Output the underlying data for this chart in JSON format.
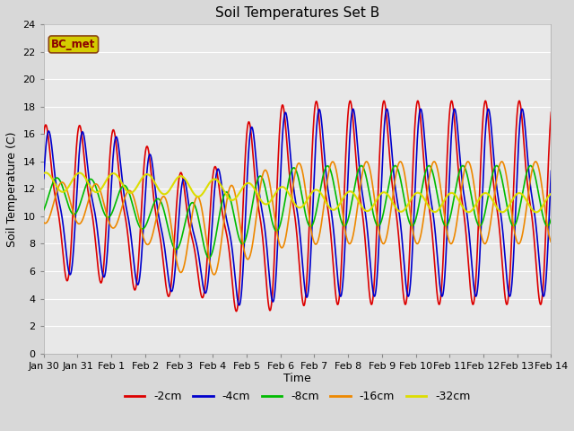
{
  "title": "Soil Temperatures Set B",
  "xlabel": "Time",
  "ylabel": "Soil Temperature (C)",
  "ylim": [
    0,
    24
  ],
  "yticks": [
    0,
    2,
    4,
    6,
    8,
    10,
    12,
    14,
    16,
    18,
    20,
    22,
    24
  ],
  "legend_label": "BC_met",
  "legend_box_facecolor": "#d4cc00",
  "legend_box_edgecolor": "#8B4513",
  "series": [
    {
      "label": "-2cm",
      "color": "#dd0000",
      "linewidth": 1.2
    },
    {
      "label": "-4cm",
      "color": "#0000cc",
      "linewidth": 1.2
    },
    {
      "label": "-8cm",
      "color": "#00bb00",
      "linewidth": 1.2
    },
    {
      "label": "-16cm",
      "color": "#ee8800",
      "linewidth": 1.2
    },
    {
      "label": "-32cm",
      "color": "#dddd00",
      "linewidth": 1.5
    }
  ],
  "tick_labels": [
    "Jan 30",
    "Jan 31",
    "Feb 1",
    "Feb 2",
    "Feb 3",
    "Feb 4",
    "Feb 5",
    "Feb 6",
    "Feb 7",
    "Feb 8",
    "Feb 9",
    "Feb 10",
    "Feb 11",
    "Feb 12",
    "Feb 13",
    "Feb 14"
  ],
  "figure_bg_color": "#d8d8d8",
  "plot_bg_color": "#e8e8e8",
  "grid_color": "#ffffff",
  "figsize": [
    6.4,
    4.8
  ],
  "dpi": 100
}
